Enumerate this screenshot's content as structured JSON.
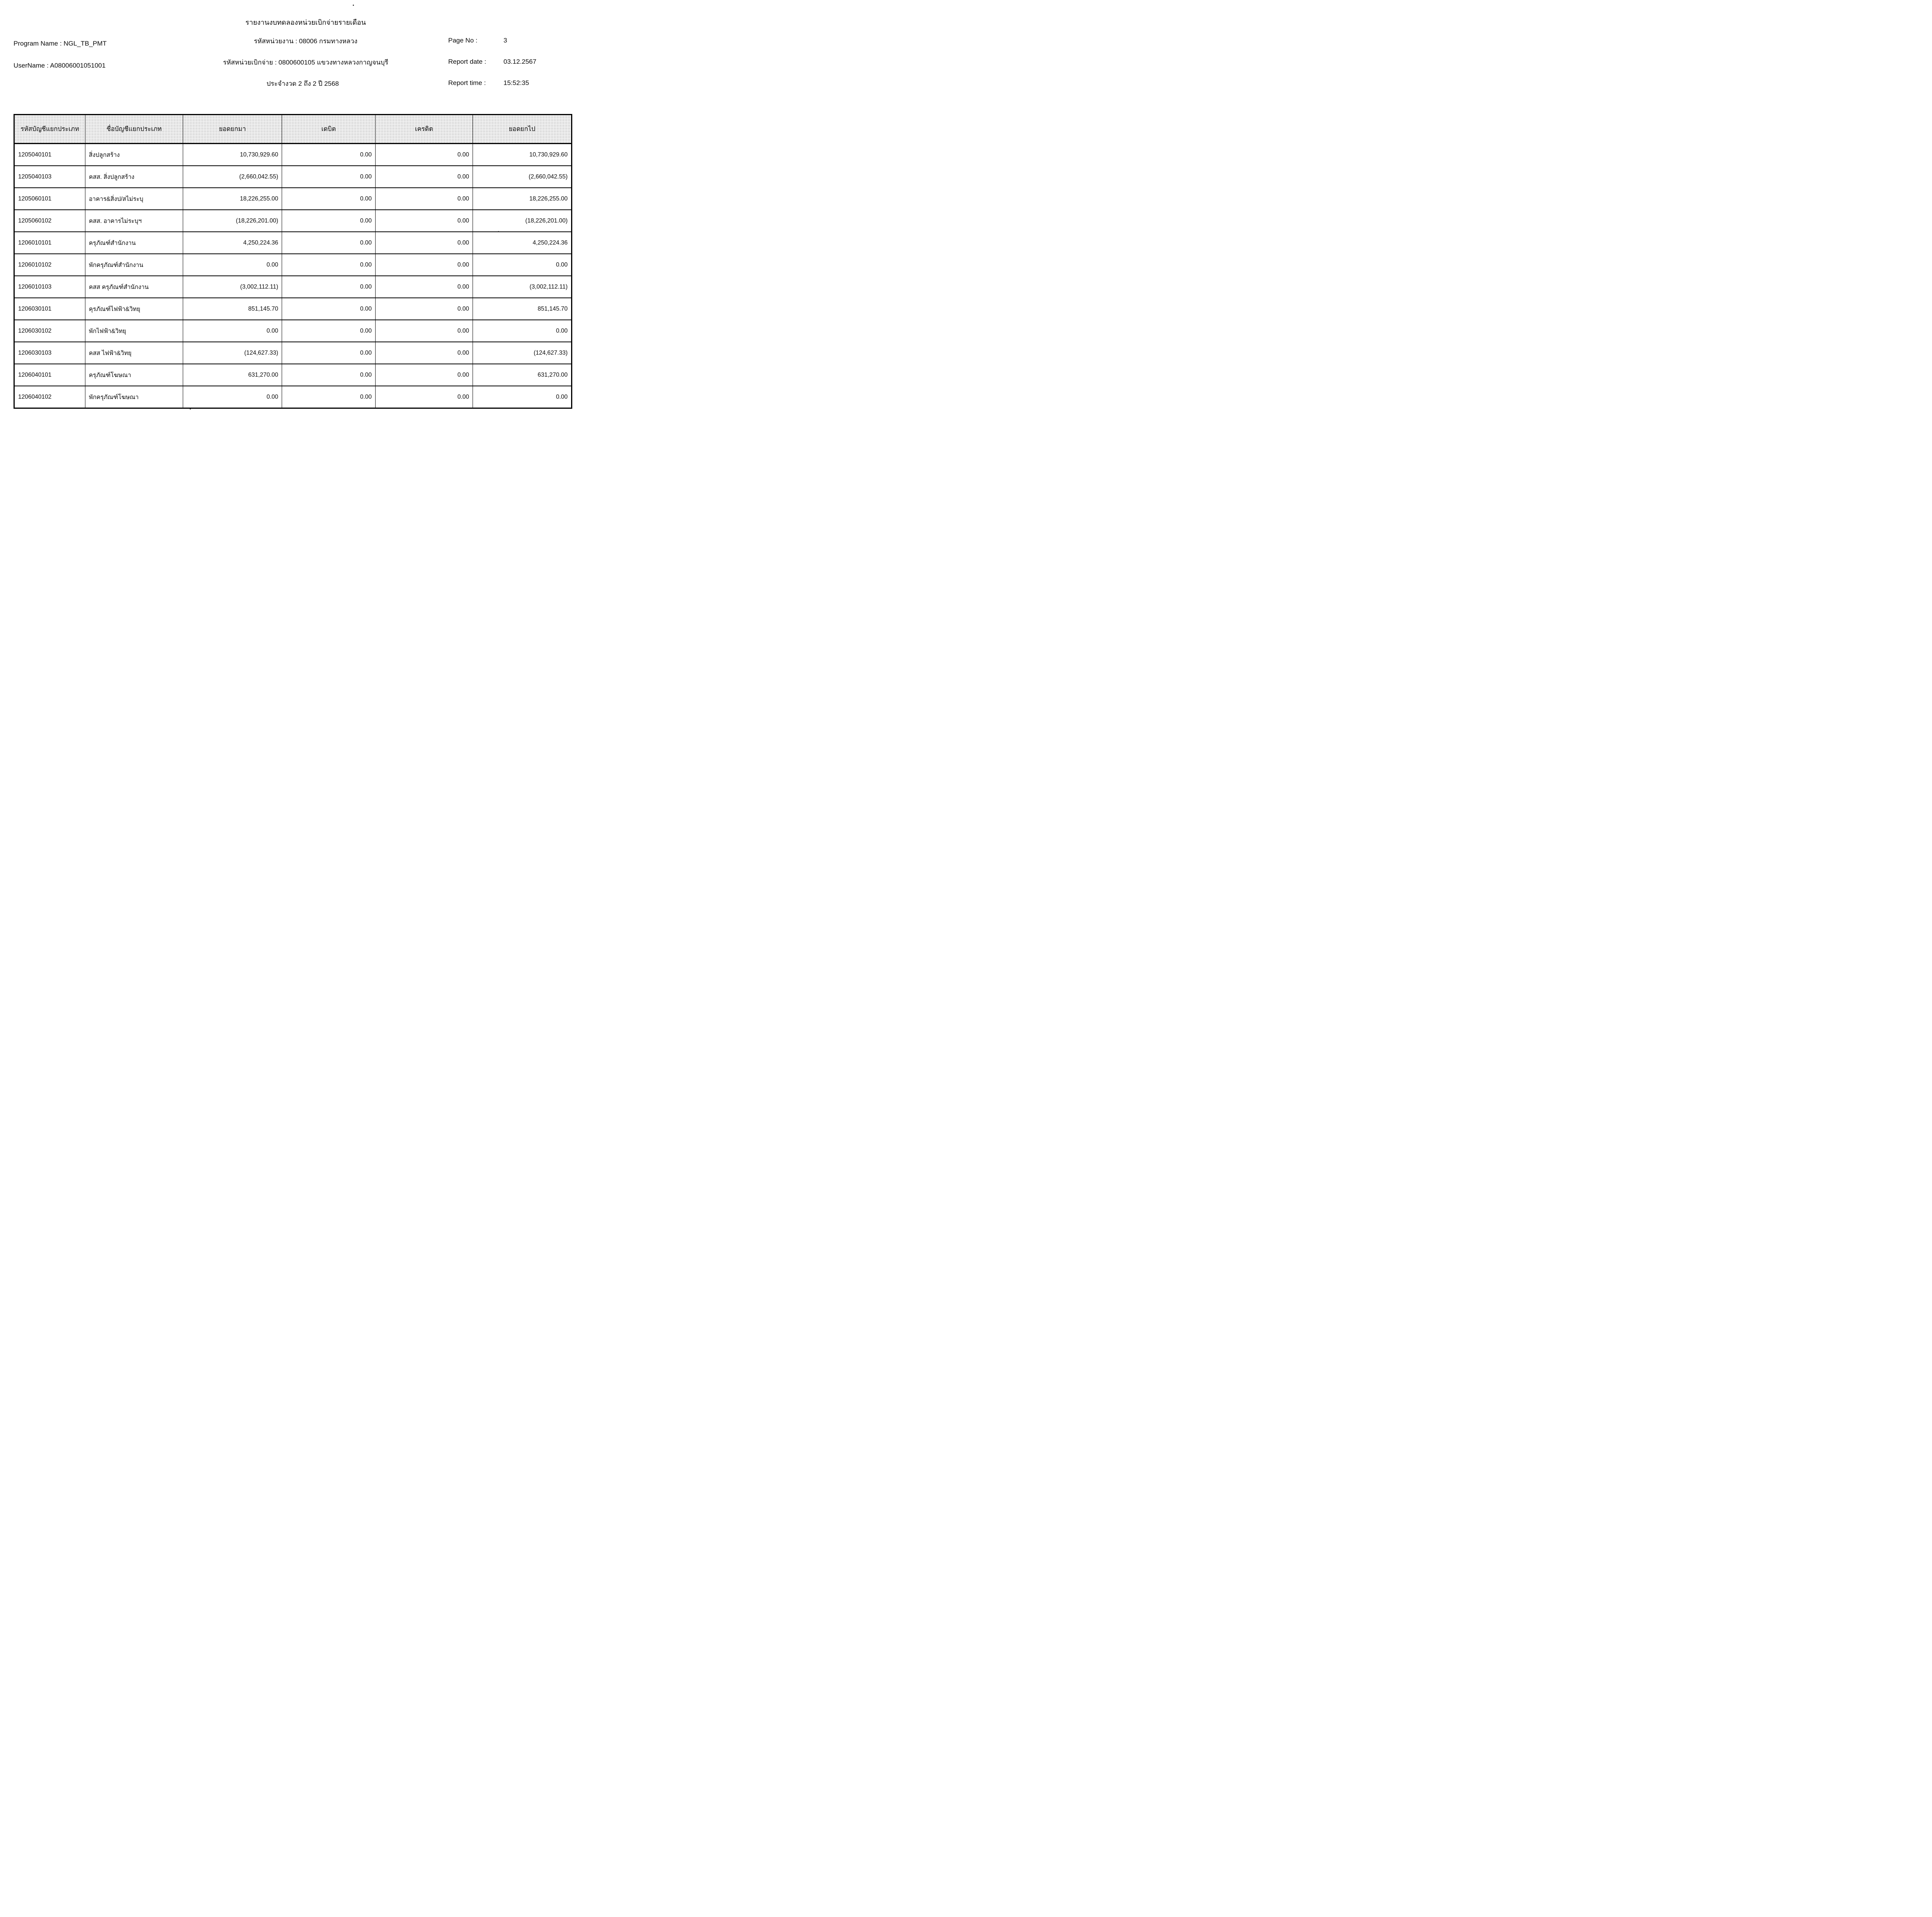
{
  "header": {
    "title": "รายงานงบทดลองหน่วยเบิกจ่ายรายเดือน",
    "program_name_label": "Program Name :",
    "program_name_value": "NGL_TB_PMT",
    "username_label": "UserName :",
    "username_value": "A08006001051001",
    "agency_line": "รหัสหน่วยงาน : 08006 กรมทางหลวง",
    "disbursement_line": "รหัสหน่วยเบิกจ่าย : 0800600105 แขวงทางหลวงกาญจนบุรี",
    "period_line": "ประจำงวด 2 ถึง 2 ปี 2568",
    "page_no_label": "Page No :",
    "page_no_value": "3",
    "report_date_label": "Report date :",
    "report_date_value": "03.12.2567",
    "report_time_label": "Report time :",
    "report_time_value": "15:52:35"
  },
  "table": {
    "columns": [
      "รหัสบัญชีแยกประเภท",
      "ชื่อบัญชีแยกประเภท",
      "ยอดยกมา",
      "เดบิต",
      "เครดิต",
      "ยอดยกไป"
    ],
    "rows": [
      [
        "1205040101",
        "สิ่งปลูกสร้าง",
        "10,730,929.60",
        "0.00",
        "0.00",
        "10,730,929.60"
      ],
      [
        "1205040103",
        "คสส. สิ่งปลูกสร้าง",
        "(2,660,042.55)",
        "0.00",
        "0.00",
        "(2,660,042.55)"
      ],
      [
        "1205060101",
        "อาคาร&สิ่งป/สไม่ระบุ",
        "18,226,255.00",
        "0.00",
        "0.00",
        "18,226,255.00"
      ],
      [
        "1205060102",
        "คสส. อาคารไม่ระบุฯ",
        "(18,226,201.00)",
        "0.00",
        "0.00",
        "(18,226,201.00)"
      ],
      [
        "1206010101",
        "ครุภัณฑ์สำนักงาน",
        "4,250,224.36",
        "0.00",
        "0.00",
        "4,250,224.36"
      ],
      [
        "1206010102",
        "พักครุภัณฑ์สำนักงาน",
        "0.00",
        "0.00",
        "0.00",
        "0.00"
      ],
      [
        "1206010103",
        "คสส ครุภัณฑ์สำนักงาน",
        "(3,002,112.11)",
        "0.00",
        "0.00",
        "(3,002,112.11)"
      ],
      [
        "1206030101",
        "คุรภัณฑ์ไฟฟ้า&วิทยุ",
        "851,145.70",
        "0.00",
        "0.00",
        "851,145.70"
      ],
      [
        "1206030102",
        "พักไฟฟ้า&วิทยุ",
        "0.00",
        "0.00",
        "0.00",
        "0.00"
      ],
      [
        "1206030103",
        "คสส ไฟฟ้า&วิทยุ",
        "(124,627.33)",
        "0.00",
        "0.00",
        "(124,627.33)"
      ],
      [
        "1206040101",
        "ครุภัณฑ์โฆษณา",
        "631,270.00",
        "0.00",
        "0.00",
        "631,270.00"
      ],
      [
        "1206040102",
        "พักครุภัณฑ์โฆษณา",
        "0.00",
        "0.00",
        "0.00",
        "0.00"
      ]
    ]
  }
}
